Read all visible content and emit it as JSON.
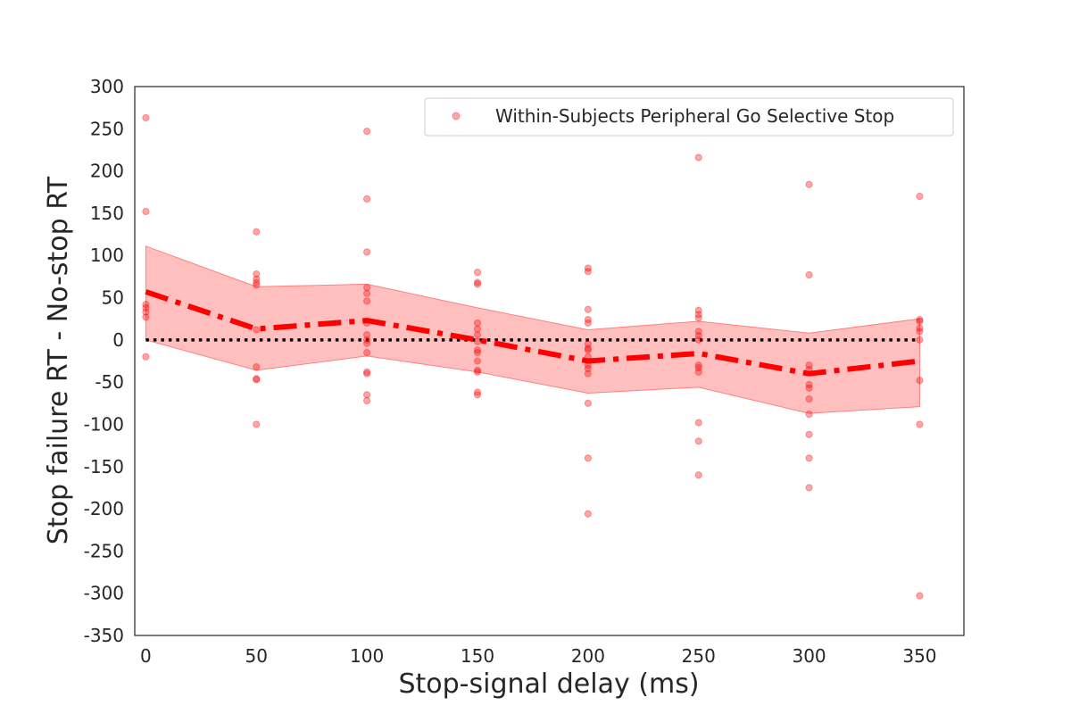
{
  "chart_data": {
    "type": "scatter",
    "title": "",
    "xlabel": "Stop-signal delay (ms)",
    "ylabel": "Stop failure RT - No-stop RT",
    "xlim": [
      -5,
      370
    ],
    "ylim": [
      -350,
      300
    ],
    "xticks": [
      0,
      50,
      100,
      150,
      200,
      250,
      300,
      350
    ],
    "yticks": [
      300,
      250,
      200,
      150,
      100,
      50,
      0,
      -50,
      -100,
      -150,
      -200,
      -250,
      -300,
      -350
    ],
    "grid": false,
    "legend_position": "top-right",
    "colors": {
      "series": "#ff0000",
      "band": "#ff8080",
      "zero_line": "#000000",
      "frame": "#262626"
    },
    "series": [
      {
        "name": "Within-Subjects Peripheral Go Selective Stop",
        "kind": "scatter",
        "points": [
          {
            "x": 0,
            "y": 263
          },
          {
            "x": 0,
            "y": 152
          },
          {
            "x": 0,
            "y": 42
          },
          {
            "x": 0,
            "y": 38
          },
          {
            "x": 0,
            "y": 33
          },
          {
            "x": 0,
            "y": 27
          },
          {
            "x": 0,
            "y": -20
          },
          {
            "x": 50,
            "y": 128
          },
          {
            "x": 50,
            "y": 78
          },
          {
            "x": 50,
            "y": 72
          },
          {
            "x": 50,
            "y": 68
          },
          {
            "x": 50,
            "y": 65
          },
          {
            "x": 50,
            "y": 12
          },
          {
            "x": 50,
            "y": -32
          },
          {
            "x": 50,
            "y": -46
          },
          {
            "x": 50,
            "y": -47
          },
          {
            "x": 50,
            "y": -100
          },
          {
            "x": 100,
            "y": 247
          },
          {
            "x": 100,
            "y": 167
          },
          {
            "x": 100,
            "y": 104
          },
          {
            "x": 100,
            "y": 62
          },
          {
            "x": 100,
            "y": 55
          },
          {
            "x": 100,
            "y": 46
          },
          {
            "x": 100,
            "y": 20
          },
          {
            "x": 100,
            "y": 6
          },
          {
            "x": 100,
            "y": 0
          },
          {
            "x": 100,
            "y": -4
          },
          {
            "x": 100,
            "y": -15
          },
          {
            "x": 100,
            "y": -38
          },
          {
            "x": 100,
            "y": -40
          },
          {
            "x": 100,
            "y": -65
          },
          {
            "x": 100,
            "y": -72
          },
          {
            "x": 150,
            "y": 80
          },
          {
            "x": 150,
            "y": 68
          },
          {
            "x": 150,
            "y": 66
          },
          {
            "x": 150,
            "y": 20
          },
          {
            "x": 150,
            "y": 13
          },
          {
            "x": 150,
            "y": 6
          },
          {
            "x": 150,
            "y": -2
          },
          {
            "x": 150,
            "y": -12
          },
          {
            "x": 150,
            "y": -15
          },
          {
            "x": 150,
            "y": -25
          },
          {
            "x": 150,
            "y": -36
          },
          {
            "x": 150,
            "y": -38
          },
          {
            "x": 150,
            "y": -62
          },
          {
            "x": 150,
            "y": -65
          },
          {
            "x": 200,
            "y": 85
          },
          {
            "x": 200,
            "y": 81
          },
          {
            "x": 200,
            "y": 36
          },
          {
            "x": 200,
            "y": 24
          },
          {
            "x": 200,
            "y": 20
          },
          {
            "x": 200,
            "y": -5
          },
          {
            "x": 200,
            "y": -10
          },
          {
            "x": 200,
            "y": -12
          },
          {
            "x": 200,
            "y": -20
          },
          {
            "x": 200,
            "y": -30
          },
          {
            "x": 200,
            "y": -34
          },
          {
            "x": 200,
            "y": -40
          },
          {
            "x": 200,
            "y": -75
          },
          {
            "x": 200,
            "y": -140
          },
          {
            "x": 200,
            "y": -206
          },
          {
            "x": 250,
            "y": 216
          },
          {
            "x": 250,
            "y": 35
          },
          {
            "x": 250,
            "y": 30
          },
          {
            "x": 250,
            "y": 26
          },
          {
            "x": 250,
            "y": 10
          },
          {
            "x": 250,
            "y": 5
          },
          {
            "x": 250,
            "y": 0
          },
          {
            "x": 250,
            "y": -30
          },
          {
            "x": 250,
            "y": -33
          },
          {
            "x": 250,
            "y": -38
          },
          {
            "x": 250,
            "y": -98
          },
          {
            "x": 250,
            "y": -120
          },
          {
            "x": 250,
            "y": -160
          },
          {
            "x": 300,
            "y": 184
          },
          {
            "x": 300,
            "y": 77
          },
          {
            "x": 300,
            "y": -30
          },
          {
            "x": 300,
            "y": -35
          },
          {
            "x": 300,
            "y": -53
          },
          {
            "x": 300,
            "y": -57
          },
          {
            "x": 300,
            "y": -70
          },
          {
            "x": 300,
            "y": -88
          },
          {
            "x": 300,
            "y": -112
          },
          {
            "x": 300,
            "y": -140
          },
          {
            "x": 300,
            "y": -175
          },
          {
            "x": 350,
            "y": 170
          },
          {
            "x": 350,
            "y": 24
          },
          {
            "x": 350,
            "y": 22
          },
          {
            "x": 350,
            "y": 14
          },
          {
            "x": 350,
            "y": 10
          },
          {
            "x": 350,
            "y": 0
          },
          {
            "x": 350,
            "y": -48
          },
          {
            "x": 350,
            "y": -100
          },
          {
            "x": 350,
            "y": -303
          }
        ]
      },
      {
        "kind": "mean_line",
        "x": [
          0,
          50,
          100,
          150,
          200,
          250,
          300,
          350
        ],
        "y": [
          57,
          13,
          23,
          0,
          -25,
          -16,
          -40,
          -25
        ]
      },
      {
        "kind": "confidence_band",
        "x": [
          0,
          50,
          100,
          150,
          200,
          250,
          300,
          350
        ],
        "upper": [
          111,
          63,
          66,
          38,
          12,
          22,
          8,
          25
        ],
        "lower": [
          0,
          -36,
          -19,
          -38,
          -63,
          -56,
          -87,
          -79
        ]
      },
      {
        "kind": "reference_line",
        "y": 0,
        "x_range": [
          0,
          350
        ]
      }
    ]
  }
}
